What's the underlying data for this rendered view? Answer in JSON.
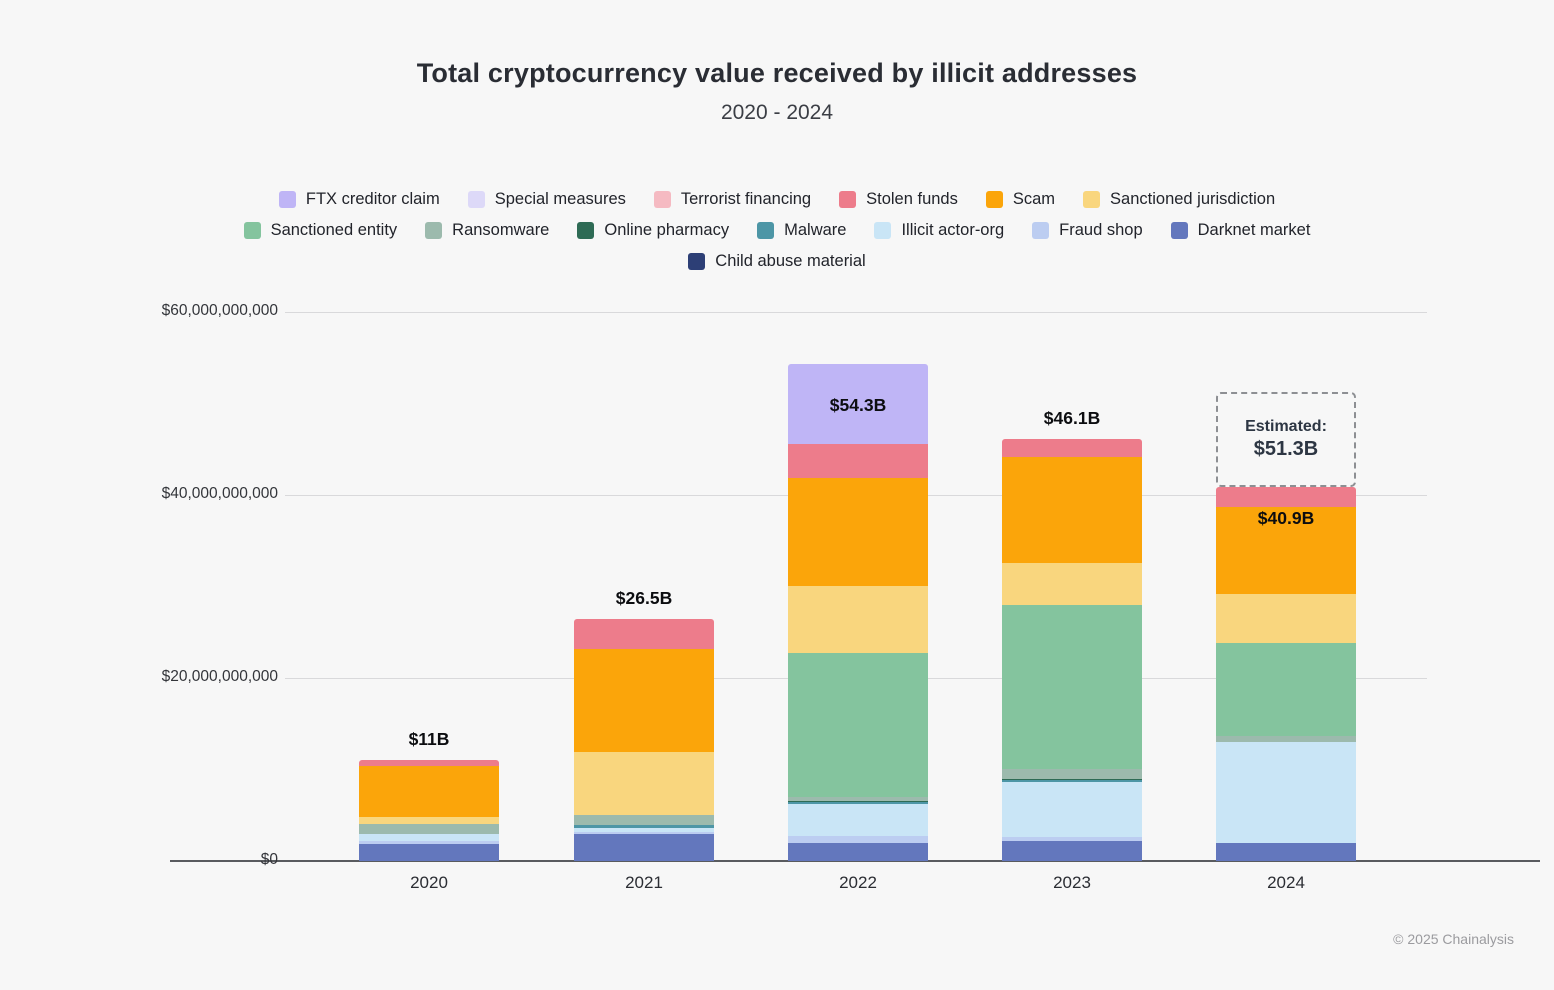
{
  "header": {
    "title": "Total cryptocurrency value received by illicit addresses",
    "subtitle": "2020 - 2024"
  },
  "footer": {
    "copyright": "© 2025 Chainalysis"
  },
  "palette": {
    "FTX creditor claim": "#bfb5f6",
    "Special measures": "#ddd9f8",
    "Terrorist financing": "#f5bac2",
    "Stolen funds": "#ed7c8b",
    "Scam": "#fba50a",
    "Sanctioned jurisdiction": "#f9d67e",
    "Sanctioned entity": "#84c49e",
    "Ransomware": "#9cbaad",
    "Online pharmacy": "#2e6b55",
    "Malware": "#4d96a6",
    "Illicit actor-org": "#c9e5f6",
    "Fraud shop": "#bccdf1",
    "Darknet market": "#6377bd",
    "Child abuse material": "#2d3f76"
  },
  "legend": {
    "rows": [
      [
        "FTX creditor claim",
        "Special measures",
        "Terrorist financing",
        "Stolen funds",
        "Scam",
        "Sanctioned jurisdiction"
      ],
      [
        "Sanctioned entity",
        "Ransomware",
        "Online pharmacy",
        "Malware",
        "Illicit actor-org",
        "Fraud shop",
        "Darknet market"
      ],
      [
        "Child abuse material"
      ]
    ]
  },
  "chart_data": {
    "type": "bar",
    "stacked": true,
    "unit": "USD billions",
    "title": "Total cryptocurrency value received by illicit addresses",
    "subtitle": "2020 - 2024",
    "categories": [
      "2020",
      "2021",
      "2022",
      "2023",
      "2024"
    ],
    "ylim": [
      0,
      60
    ],
    "grid": true,
    "legend_position": "top",
    "y_ticks": [
      {
        "label": "$0",
        "value": 0
      },
      {
        "label": "$20,000,000,000",
        "value": 20
      },
      {
        "label": "$40,000,000,000",
        "value": 40
      },
      {
        "label": "$60,000,000,000",
        "value": 60
      }
    ],
    "series": [
      {
        "name": "Child abuse material",
        "values": [
          0,
          0,
          0,
          0,
          0
        ]
      },
      {
        "name": "Darknet market",
        "values": [
          1.9,
          2.9,
          2.0,
          2.2,
          2.0
        ]
      },
      {
        "name": "Fraud shop",
        "values": [
          0.25,
          0.25,
          0.7,
          0.45,
          0
        ]
      },
      {
        "name": "Illicit actor-org",
        "values": [
          0.75,
          0.45,
          3.5,
          6.0,
          11.0
        ]
      },
      {
        "name": "Malware",
        "values": [
          0,
          0.35,
          0.2,
          0.2,
          0
        ]
      },
      {
        "name": "Online pharmacy",
        "values": [
          0,
          0,
          0.15,
          0.15,
          0
        ]
      },
      {
        "name": "Ransomware",
        "values": [
          1.1,
          1.05,
          0.4,
          1.1,
          0.7
        ]
      },
      {
        "name": "Sanctioned entity",
        "values": [
          0,
          0,
          15.8,
          17.9,
          10.1
        ]
      },
      {
        "name": "Sanctioned jurisdiction",
        "values": [
          0.8,
          6.9,
          7.35,
          4.6,
          5.4
        ]
      },
      {
        "name": "Scam",
        "values": [
          5.6,
          11.3,
          11.8,
          11.6,
          9.5
        ]
      },
      {
        "name": "Stolen funds",
        "values": [
          0.6,
          3.3,
          3.7,
          1.9,
          2.2
        ]
      },
      {
        "name": "Terrorist financing",
        "values": [
          0,
          0,
          0,
          0,
          0
        ]
      },
      {
        "name": "Special measures",
        "values": [
          0,
          0,
          0,
          0,
          0
        ]
      },
      {
        "name": "FTX creditor claim",
        "values": [
          0,
          0,
          8.7,
          0,
          0
        ]
      }
    ],
    "totals": [
      11.0,
      26.5,
      54.3,
      46.1,
      40.9
    ],
    "total_labels": [
      {
        "label": "$11B",
        "placement": "above"
      },
      {
        "label": "$26.5B",
        "placement": "above"
      },
      {
        "label": "$54.3B",
        "placement": "inside"
      },
      {
        "label": "$46.1B",
        "placement": "above"
      },
      {
        "label": "$40.9B",
        "placement": "inside"
      }
    ],
    "estimate": {
      "category": "2024",
      "category_index": 4,
      "line1": "Estimated:",
      "line2": "$51.3B",
      "total": 51.3
    }
  }
}
